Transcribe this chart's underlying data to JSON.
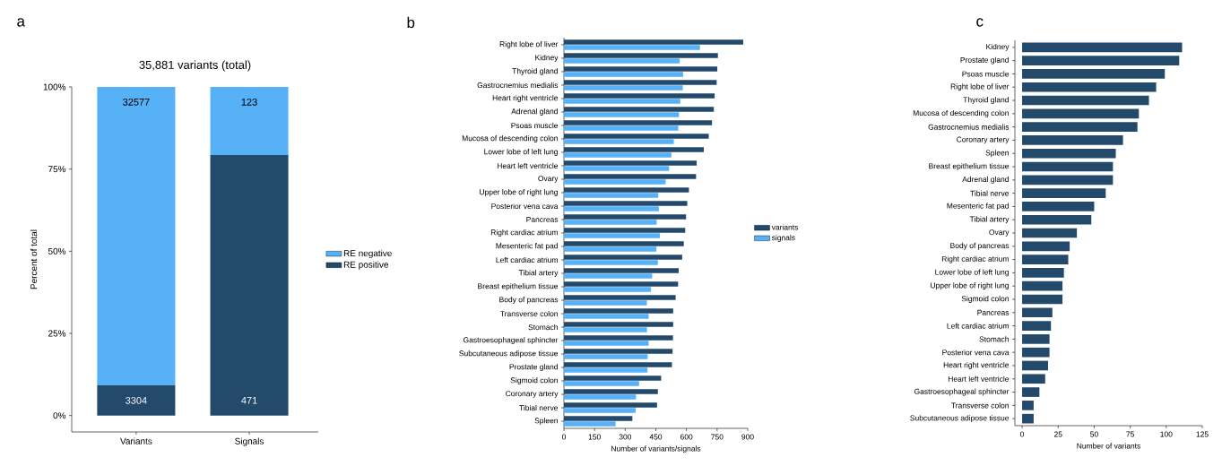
{
  "chart_data": [
    {
      "type": "bar",
      "title": "35,881 variants (total)",
      "annotations": [
        "a",
        "3304",
        "471",
        "32577",
        "123"
      ],
      "categories": [
        "Variants",
        "Signals"
      ],
      "stacked": true,
      "ylabel": "Percent of total",
      "ylim": [
        -5,
        100
      ],
      "yticks": [
        {
          "value": 0,
          "label": "0%"
        },
        {
          "value": 25,
          "label": "25%"
        },
        {
          "value": 50,
          "label": "50%"
        },
        {
          "value": 75,
          "label": "75%"
        },
        {
          "value": 100,
          "label": "100%"
        }
      ],
      "legend": "right",
      "series": [
        {
          "name": "RE positive",
          "color": "#23496b",
          "values": [
            9.2,
            79.3
          ]
        },
        {
          "name": "RE negative",
          "color": "#56b1f7",
          "values": [
            90.8,
            20.7
          ]
        }
      ]
    },
    {
      "type": "bar",
      "orientation": "horizontal",
      "annotations": [
        "b"
      ],
      "xlabel": "Number of variants/signals",
      "xlim": [
        0,
        900
      ],
      "xticks": [
        0,
        150,
        300,
        450,
        600,
        750,
        900
      ],
      "legend": "right",
      "categories": [
        "Right lobe of liver",
        "Kidney",
        "Thyroid gland",
        "Gastrocnemius medialis",
        "Heart right ventricle",
        "Adrenal gland",
        "Psoas muscle",
        "Mucosa of descending colon",
        "Lower lobe of left lung",
        "Heart left ventricle",
        "Ovary",
        "Upper lobe of right lung",
        "Posterior vena cava",
        "Pancreas",
        "Right cardiac atrium",
        "Mesenteric fat pad",
        "Left cardiac atrium",
        "Tibial artery",
        "Breast epithelium tissue",
        "Body of pancreas",
        "Transverse colon",
        "Stomach",
        "Gastroesophageal sphincter",
        "Subcutaneous adipose tissue",
        "Prostate gland",
        "Sigmoid colon",
        "Coronary artery",
        "Tibial nerve",
        "Spleen"
      ],
      "series": [
        {
          "name": "variants",
          "color": "#23496b",
          "values": [
            878,
            754,
            751,
            748,
            738,
            734,
            725,
            709,
            685,
            650,
            647,
            612,
            604,
            598,
            594,
            587,
            579,
            562,
            559,
            547,
            535,
            535,
            534,
            532,
            529,
            476,
            460,
            456,
            335
          ]
        },
        {
          "name": "signals",
          "color": "#56b1f7",
          "values": [
            666,
            567,
            584,
            582,
            570,
            563,
            560,
            538,
            526,
            515,
            498,
            462,
            465,
            454,
            470,
            453,
            460,
            432,
            426,
            406,
            415,
            407,
            415,
            410,
            409,
            368,
            353,
            351,
            253
          ]
        }
      ]
    },
    {
      "type": "bar",
      "orientation": "horizontal",
      "annotations": [
        "c"
      ],
      "xlabel": "Number of variants",
      "xlim": [
        -5,
        125
      ],
      "xticks": [
        0,
        25,
        50,
        75,
        100,
        125
      ],
      "categories": [
        "Kidney",
        "Prostate gland",
        "Psoas muscle",
        "Right lobe of liver",
        "Thyroid gland",
        "Mucosa of descending colon",
        "Gastrocnemius medialis",
        "Coronary artery",
        "Spleen",
        "Breast epithelium tissue",
        "Adrenal gland",
        "Tibial nerve",
        "Mesenteric fat pad",
        "Tibial artery",
        "Ovary",
        "Body of pancreas",
        "Right cardiac atrium",
        "Lower lobe of left lung",
        "Upper lobe of right lung",
        "Sigmoid colon",
        "Pancreas",
        "Left cardiac atrium",
        "Stomach",
        "Posterior vena cava",
        "Heart right ventricle",
        "Heart left ventricle",
        "Gastroesophageal sphincter",
        "Transverse colon",
        "Subcutaneous adipose tissue"
      ],
      "color": "#23496b",
      "values": [
        111,
        109,
        99,
        93,
        88,
        81,
        80,
        70,
        65,
        63,
        63,
        58,
        50,
        48,
        38,
        33,
        32,
        29,
        28,
        28,
        21,
        20,
        19,
        19,
        18,
        16,
        12,
        8,
        8
      ]
    }
  ]
}
